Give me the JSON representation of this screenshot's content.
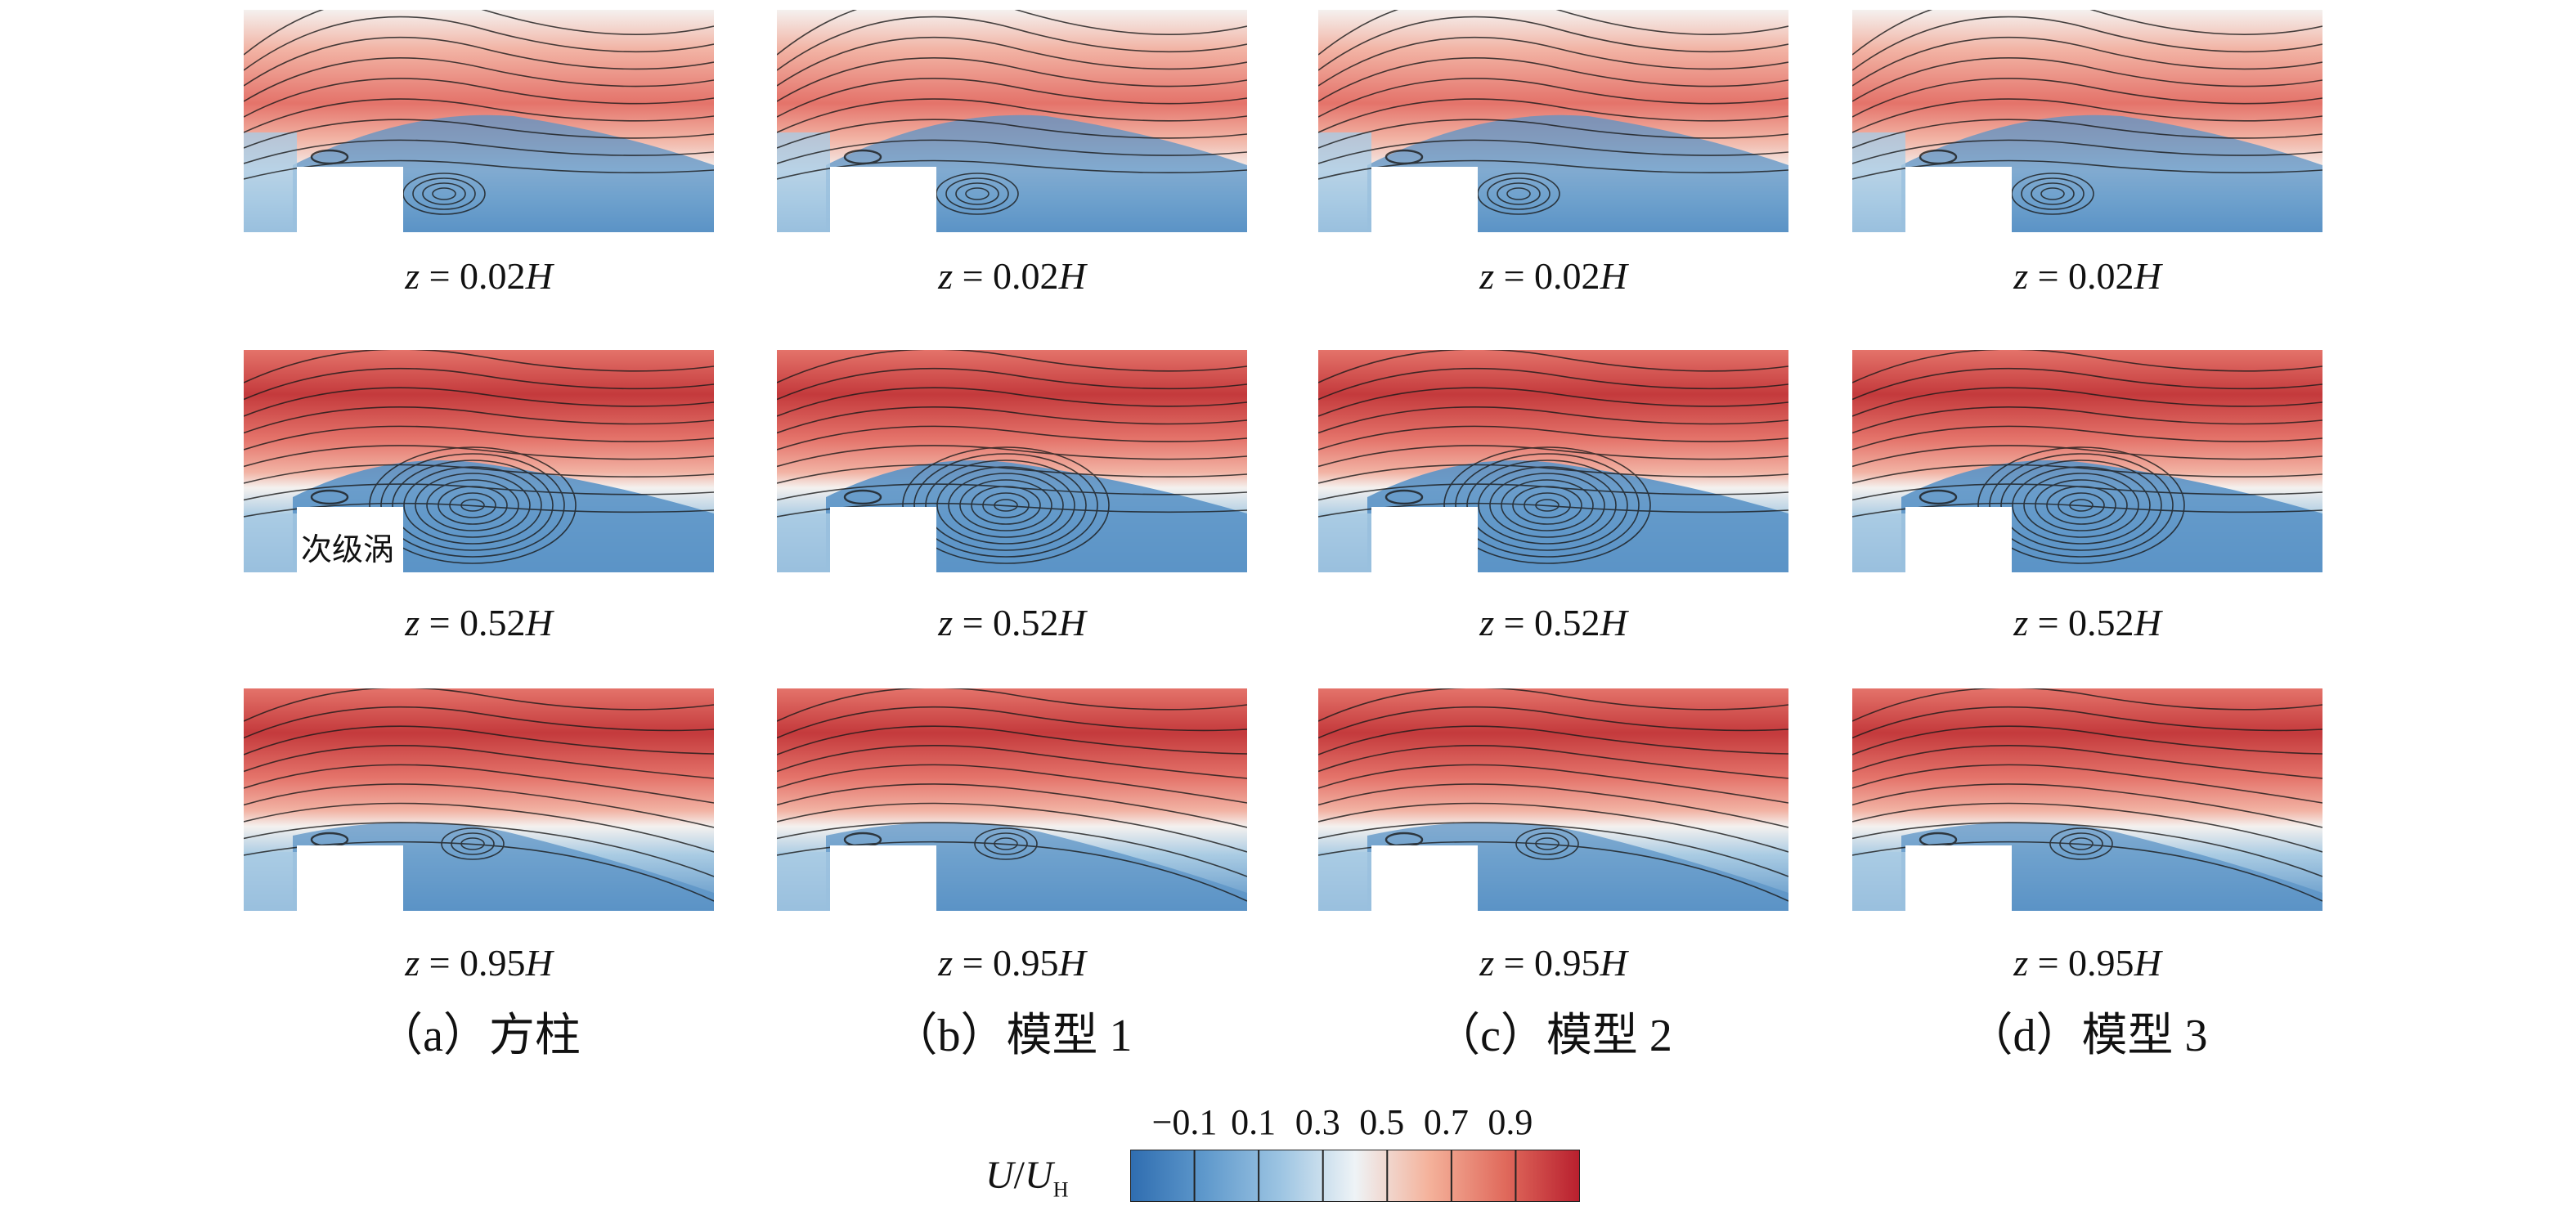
{
  "columns": [
    {
      "caption": "（a）方柱",
      "rows": [
        {
          "label_italic": "z",
          "label_mid": " = 0.02",
          "label_end": "H"
        },
        {
          "label_italic": "z",
          "label_mid": " = 0.52",
          "label_end": "H"
        },
        {
          "label_italic": "z",
          "label_mid": " = 0.95",
          "label_end": "H"
        }
      ]
    },
    {
      "caption": "（b）模型 1",
      "rows": [
        {
          "label_italic": "z",
          "label_mid": " = 0.02",
          "label_end": "H"
        },
        {
          "label_italic": "z",
          "label_mid": " = 0.52",
          "label_end": "H"
        },
        {
          "label_italic": "z",
          "label_mid": " = 0.95",
          "label_end": "H"
        }
      ]
    },
    {
      "caption": "（c）模型 2",
      "rows": [
        {
          "label_italic": "z",
          "label_mid": " = 0.02",
          "label_end": "H"
        },
        {
          "label_italic": "z",
          "label_mid": " = 0.52",
          "label_end": "H"
        },
        {
          "label_italic": "z",
          "label_mid": " = 0.95",
          "label_end": "H"
        }
      ]
    },
    {
      "caption": "（d）模型 3",
      "rows": [
        {
          "label_italic": "z",
          "label_mid": " = 0.02",
          "label_end": "H"
        },
        {
          "label_italic": "z",
          "label_mid": " = 0.52",
          "label_end": "H"
        },
        {
          "label_italic": "z",
          "label_mid": " = 0.95",
          "label_end": "H"
        }
      ]
    }
  ],
  "annotation": "次级涡",
  "colorbar": {
    "title_var": "U",
    "title_slash": "/",
    "title_den": "U",
    "title_sub": "H",
    "ticks": [
      "−0.1",
      "0.1",
      "0.3",
      "0.5",
      "0.7",
      "0.9"
    ],
    "colors": [
      "#2f6db0",
      "#5f99cc",
      "#9cc4e2",
      "#eef3f6",
      "#f4b19a",
      "#e06a5c",
      "#b81f2e"
    ]
  },
  "field_colors": {
    "deep_red": "#c43a3c",
    "red": "#e4736a",
    "light_red": "#f2b3a4",
    "white": "#f4f1ef",
    "light_blue": "#a9cbe3",
    "blue": "#5b93c6",
    "deep_blue": "#3f78b7",
    "streamline": "#1a1a1a"
  }
}
